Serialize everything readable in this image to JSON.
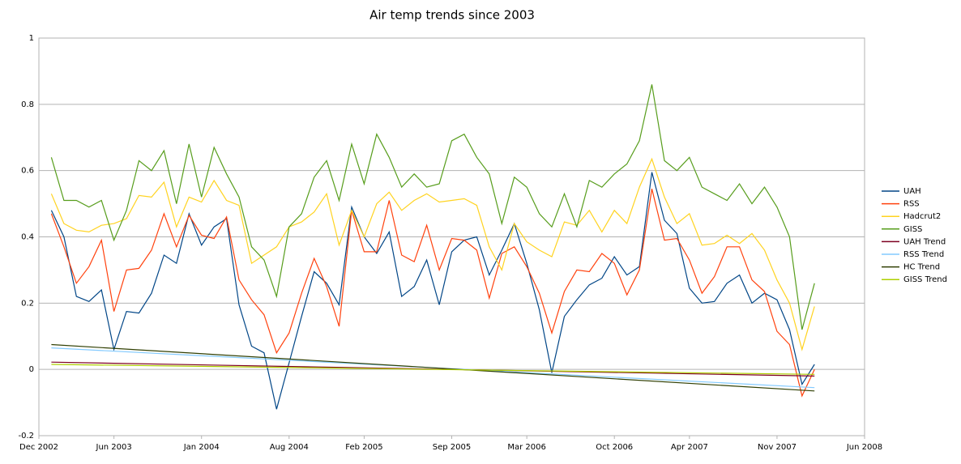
{
  "chart_data": {
    "type": "line",
    "title": "Air temp trends since 2003",
    "x": [
      "2003-01",
      "2003-02",
      "2003-03",
      "2003-04",
      "2003-05",
      "2003-06",
      "2003-07",
      "2003-08",
      "2003-09",
      "2003-10",
      "2003-11",
      "2003-12",
      "2004-01",
      "2004-02",
      "2004-03",
      "2004-04",
      "2004-05",
      "2004-06",
      "2004-07",
      "2004-08",
      "2004-09",
      "2004-10",
      "2004-11",
      "2004-12",
      "2005-01",
      "2005-02",
      "2005-03",
      "2005-04",
      "2005-05",
      "2005-06",
      "2005-07",
      "2005-08",
      "2005-09",
      "2005-10",
      "2005-11",
      "2005-12",
      "2006-01",
      "2006-02",
      "2006-03",
      "2006-04",
      "2006-05",
      "2006-06",
      "2006-07",
      "2006-08",
      "2006-09",
      "2006-10",
      "2006-11",
      "2006-12",
      "2007-01",
      "2007-02",
      "2007-03",
      "2007-04",
      "2007-05",
      "2007-06",
      "2007-07",
      "2007-08",
      "2007-09",
      "2007-10",
      "2007-11",
      "2007-12",
      "2008-01",
      "2008-02"
    ],
    "series": [
      {
        "name": "UAH",
        "color": "#004586",
        "values": [
          0.48,
          0.4,
          0.22,
          0.205,
          0.24,
          0.06,
          0.175,
          0.17,
          0.23,
          0.345,
          0.32,
          0.47,
          0.375,
          0.43,
          0.455,
          0.195,
          0.07,
          0.05,
          -0.12,
          0.02,
          0.16,
          0.295,
          0.26,
          0.195,
          0.49,
          0.4,
          0.35,
          0.415,
          0.22,
          0.25,
          0.33,
          0.195,
          0.355,
          0.39,
          0.4,
          0.285,
          0.36,
          0.44,
          0.32,
          0.18,
          -0.01,
          0.16,
          0.21,
          0.255,
          0.275,
          0.34,
          0.285,
          0.31,
          0.595,
          0.45,
          0.41,
          0.245,
          0.2,
          0.205,
          0.26,
          0.285,
          0.2,
          0.23,
          0.21,
          0.12,
          -0.045,
          0.015
        ]
      },
      {
        "name": "RSS",
        "color": "#ff420e",
        "values": [
          0.47,
          0.37,
          0.26,
          0.31,
          0.39,
          0.175,
          0.3,
          0.305,
          0.36,
          0.47,
          0.37,
          0.465,
          0.405,
          0.395,
          0.46,
          0.27,
          0.21,
          0.165,
          0.05,
          0.11,
          0.23,
          0.335,
          0.25,
          0.13,
          0.48,
          0.355,
          0.355,
          0.51,
          0.345,
          0.325,
          0.435,
          0.3,
          0.395,
          0.39,
          0.36,
          0.215,
          0.35,
          0.37,
          0.31,
          0.23,
          0.11,
          0.235,
          0.3,
          0.295,
          0.35,
          0.32,
          0.225,
          0.3,
          0.545,
          0.39,
          0.395,
          0.33,
          0.23,
          0.28,
          0.37,
          0.37,
          0.27,
          0.235,
          0.115,
          0.075,
          -0.08,
          0.0
        ]
      },
      {
        "name": "Hadcrut2",
        "color": "#ffd320",
        "values": [
          0.53,
          0.44,
          0.42,
          0.415,
          0.435,
          0.44,
          0.455,
          0.525,
          0.52,
          0.565,
          0.43,
          0.52,
          0.505,
          0.57,
          0.51,
          0.495,
          0.32,
          0.345,
          0.37,
          0.43,
          0.445,
          0.475,
          0.53,
          0.375,
          0.48,
          0.4,
          0.5,
          0.535,
          0.48,
          0.51,
          0.53,
          0.505,
          0.51,
          0.515,
          0.495,
          0.37,
          0.3,
          0.44,
          0.385,
          0.36,
          0.34,
          0.445,
          0.435,
          0.48,
          0.415,
          0.48,
          0.44,
          0.55,
          0.635,
          0.52,
          0.44,
          0.47,
          0.375,
          0.38,
          0.405,
          0.38,
          0.41,
          0.36,
          0.27,
          0.2,
          0.06,
          0.19
        ]
      },
      {
        "name": "GISS",
        "color": "#579d1c",
        "values": [
          0.64,
          0.51,
          0.51,
          0.49,
          0.51,
          0.39,
          0.48,
          0.63,
          0.6,
          0.66,
          0.5,
          0.68,
          0.52,
          0.67,
          0.59,
          0.52,
          0.37,
          0.33,
          0.22,
          0.43,
          0.47,
          0.58,
          0.63,
          0.51,
          0.68,
          0.56,
          0.71,
          0.64,
          0.55,
          0.59,
          0.55,
          0.56,
          0.69,
          0.71,
          0.64,
          0.59,
          0.44,
          0.58,
          0.55,
          0.47,
          0.43,
          0.53,
          0.43,
          0.57,
          0.55,
          0.59,
          0.62,
          0.69,
          0.86,
          0.63,
          0.6,
          0.64,
          0.55,
          0.53,
          0.51,
          0.56,
          0.5,
          0.55,
          0.49,
          0.4,
          0.12,
          0.26
        ]
      },
      {
        "name": "UAH Trend",
        "color": "#7e0021",
        "x": [
          "2003-01",
          "2008-02"
        ],
        "values": [
          0.022,
          -0.02
        ]
      },
      {
        "name": "RSS Trend",
        "color": "#83caff",
        "x": [
          "2003-01",
          "2008-02"
        ],
        "values": [
          0.065,
          -0.055
        ]
      },
      {
        "name": "HC Trend",
        "color": "#314004",
        "x": [
          "2003-01",
          "2008-02"
        ],
        "values": [
          0.075,
          -0.065
        ]
      },
      {
        "name": "GISS Trend",
        "color": "#aecf00",
        "x": [
          "2003-01",
          "2008-02"
        ],
        "values": [
          0.015,
          -0.015
        ]
      }
    ],
    "xlim": [
      "2002-12",
      "2008-06"
    ],
    "xticks": [
      {
        "value": "2002-12",
        "label": "Dec 2002"
      },
      {
        "value": "2003-06",
        "label": "Jun 2003"
      },
      {
        "value": "2004-01",
        "label": "Jan 2004"
      },
      {
        "value": "2004-08",
        "label": "Aug 2004"
      },
      {
        "value": "2005-02",
        "label": "Feb 2005"
      },
      {
        "value": "2005-09",
        "label": "Sep 2005"
      },
      {
        "value": "2006-03",
        "label": "Mar 2006"
      },
      {
        "value": "2006-10",
        "label": "Oct 2006"
      },
      {
        "value": "2007-04",
        "label": "Apr 2007"
      },
      {
        "value": "2007-11",
        "label": "Nov 2007"
      },
      {
        "value": "2008-06",
        "label": "Jun 2008"
      }
    ],
    "ylim": [
      -0.2,
      1
    ],
    "yticks": [
      -0.2,
      0,
      0.2,
      0.4,
      0.6,
      0.8,
      1
    ],
    "grid": true,
    "legend": "right"
  }
}
